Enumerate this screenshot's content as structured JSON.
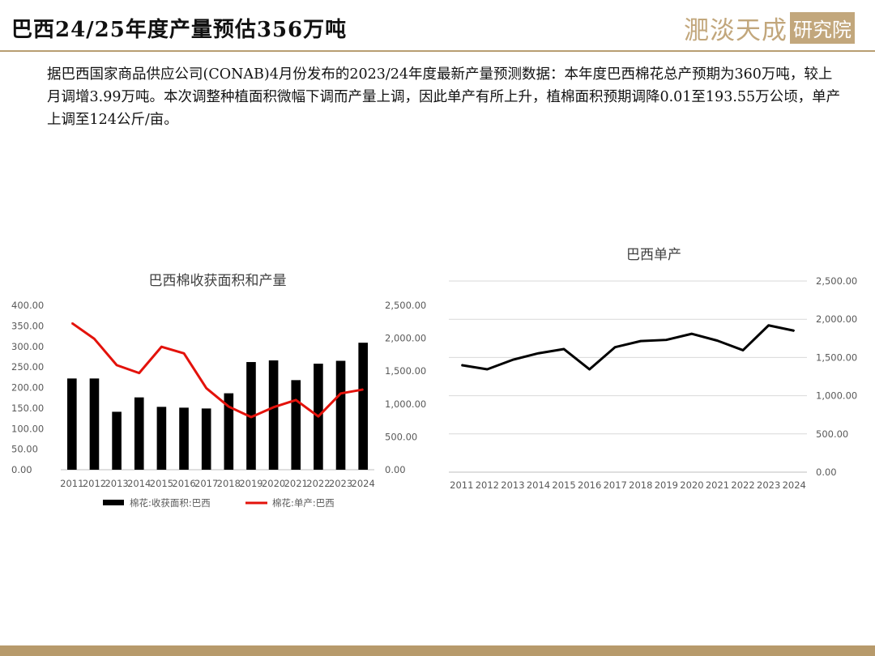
{
  "header": {
    "title": "巴西24/25年度产量预估356万吨",
    "logo_text": "淝淡天成",
    "logo_box_text": "研究院"
  },
  "body": {
    "paragraph": "据巴西国家商品供应公司(CONAB)4月份发布的2023/24年度最新产量预测数据：本年度巴西棉花总产预期为360万吨，较上月调增3.99万吨。本次调整种植面积微幅下调而产量上调，因此单产有所上升，植棉面积预期调降0.01至193.55万公顷，单产上调至124公斤/亩。"
  },
  "colors": {
    "accent": "#b89e72",
    "bar": "#000000",
    "line_red": "#e3120b",
    "line_black": "#000000",
    "grid": "#d9d9d9",
    "axis_text": "#595959"
  },
  "chart_data": [
    {
      "type": "bar",
      "title": "巴西棉收获面积和产量",
      "categories": [
        "2011",
        "2012",
        "2013",
        "2014",
        "2015",
        "2016",
        "2017",
        "2018",
        "2019",
        "2020",
        "2021",
        "2022",
        "2023",
        "2024"
      ],
      "left_axis": {
        "ylim": [
          0,
          400
        ],
        "ticks": [
          "0.00",
          "50.00",
          "100.00",
          "150.00",
          "200.00",
          "250.00",
          "300.00",
          "350.00",
          "400.00"
        ]
      },
      "right_axis": {
        "ylim": [
          0,
          2500
        ],
        "ticks": [
          "0.00",
          "500.00",
          "1,000.00",
          "1,500.00",
          "2,000.00",
          "2,500.00"
        ]
      },
      "series": [
        {
          "name": "棉花:收获面积:巴西",
          "type": "bar",
          "axis": "left",
          "color": "#000000",
          "values": [
            222,
            222,
            141,
            176,
            153,
            151,
            149,
            186,
            262,
            266,
            218,
            258,
            265,
            309
          ]
        },
        {
          "name": "棉花:单产:巴西",
          "type": "line",
          "axis": "right",
          "color": "#e3120b",
          "values": [
            2230,
            1990,
            1590,
            1470,
            1870,
            1770,
            1240,
            960,
            800,
            950,
            1060,
            810,
            1160,
            1220
          ]
        }
      ],
      "legend": "bottom"
    },
    {
      "type": "line",
      "title": "巴西单产",
      "categories": [
        "2011",
        "2012",
        "2013",
        "2014",
        "2015",
        "2016",
        "2017",
        "2018",
        "2019",
        "2020",
        "2021",
        "2022",
        "2023",
        "2024"
      ],
      "ylim": [
        0,
        2500
      ],
      "ticks": [
        "0.00",
        "500.00",
        "1,000.00",
        "1,500.00",
        "2,000.00",
        "2,500.00"
      ],
      "y_axis_side": "right",
      "series": [
        {
          "color": "#000000",
          "values": [
            1400,
            1345,
            1470,
            1555,
            1610,
            1345,
            1635,
            1715,
            1730,
            1810,
            1720,
            1595,
            1920,
            1850
          ]
        }
      ]
    }
  ]
}
